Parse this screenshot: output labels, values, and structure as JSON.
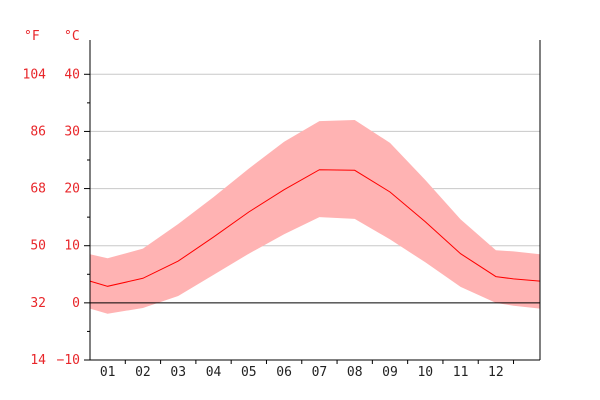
{
  "chart_data": {
    "type": "area",
    "title": "",
    "xlabel": "",
    "ylabel": "",
    "units": {
      "left": "°F",
      "right": "°C"
    },
    "categories": [
      "01",
      "02",
      "03",
      "04",
      "05",
      "06",
      "07",
      "08",
      "09",
      "10",
      "11",
      "12"
    ],
    "ylim": [
      -10,
      46
    ],
    "y_ticks_c": [
      -10,
      0,
      10,
      20,
      30,
      40
    ],
    "y_ticks_f": [
      14,
      32,
      50,
      68,
      86,
      104
    ],
    "grid": true,
    "x_start": 0.0,
    "x_end": 12.75,
    "series": [
      {
        "kind": "band",
        "x": [
          0.0,
          0.5,
          1.5,
          2.5,
          3.5,
          4.5,
          5.5,
          6.5,
          7.5,
          8.5,
          9.5,
          10.5,
          11.5,
          12.0,
          12.75
        ],
        "high": [
          8.5,
          7.8,
          9.5,
          13.8,
          18.5,
          23.5,
          28.2,
          31.8,
          32.0,
          28.0,
          21.5,
          14.6,
          9.2,
          9.0,
          8.5
        ],
        "low": [
          -1.0,
          -1.9,
          -0.9,
          1.2,
          4.9,
          8.6,
          12.0,
          15.0,
          14.7,
          11.1,
          7.1,
          2.8,
          0.0,
          -0.5,
          -1.0
        ]
      },
      {
        "kind": "line",
        "x": [
          0.0,
          0.5,
          1.5,
          2.5,
          3.5,
          4.5,
          5.5,
          6.5,
          7.5,
          8.5,
          9.5,
          10.5,
          11.5,
          12.0,
          12.75
        ],
        "values": [
          3.8,
          2.9,
          4.3,
          7.3,
          11.5,
          15.9,
          19.8,
          23.3,
          23.2,
          19.4,
          14.2,
          8.6,
          4.6,
          4.2,
          3.8
        ]
      }
    ],
    "colors": {
      "band": "#ffb3b3",
      "line": "#ff0000",
      "grid": "#c8c8c8",
      "axis": "#000000",
      "label": "#e8262a"
    }
  }
}
